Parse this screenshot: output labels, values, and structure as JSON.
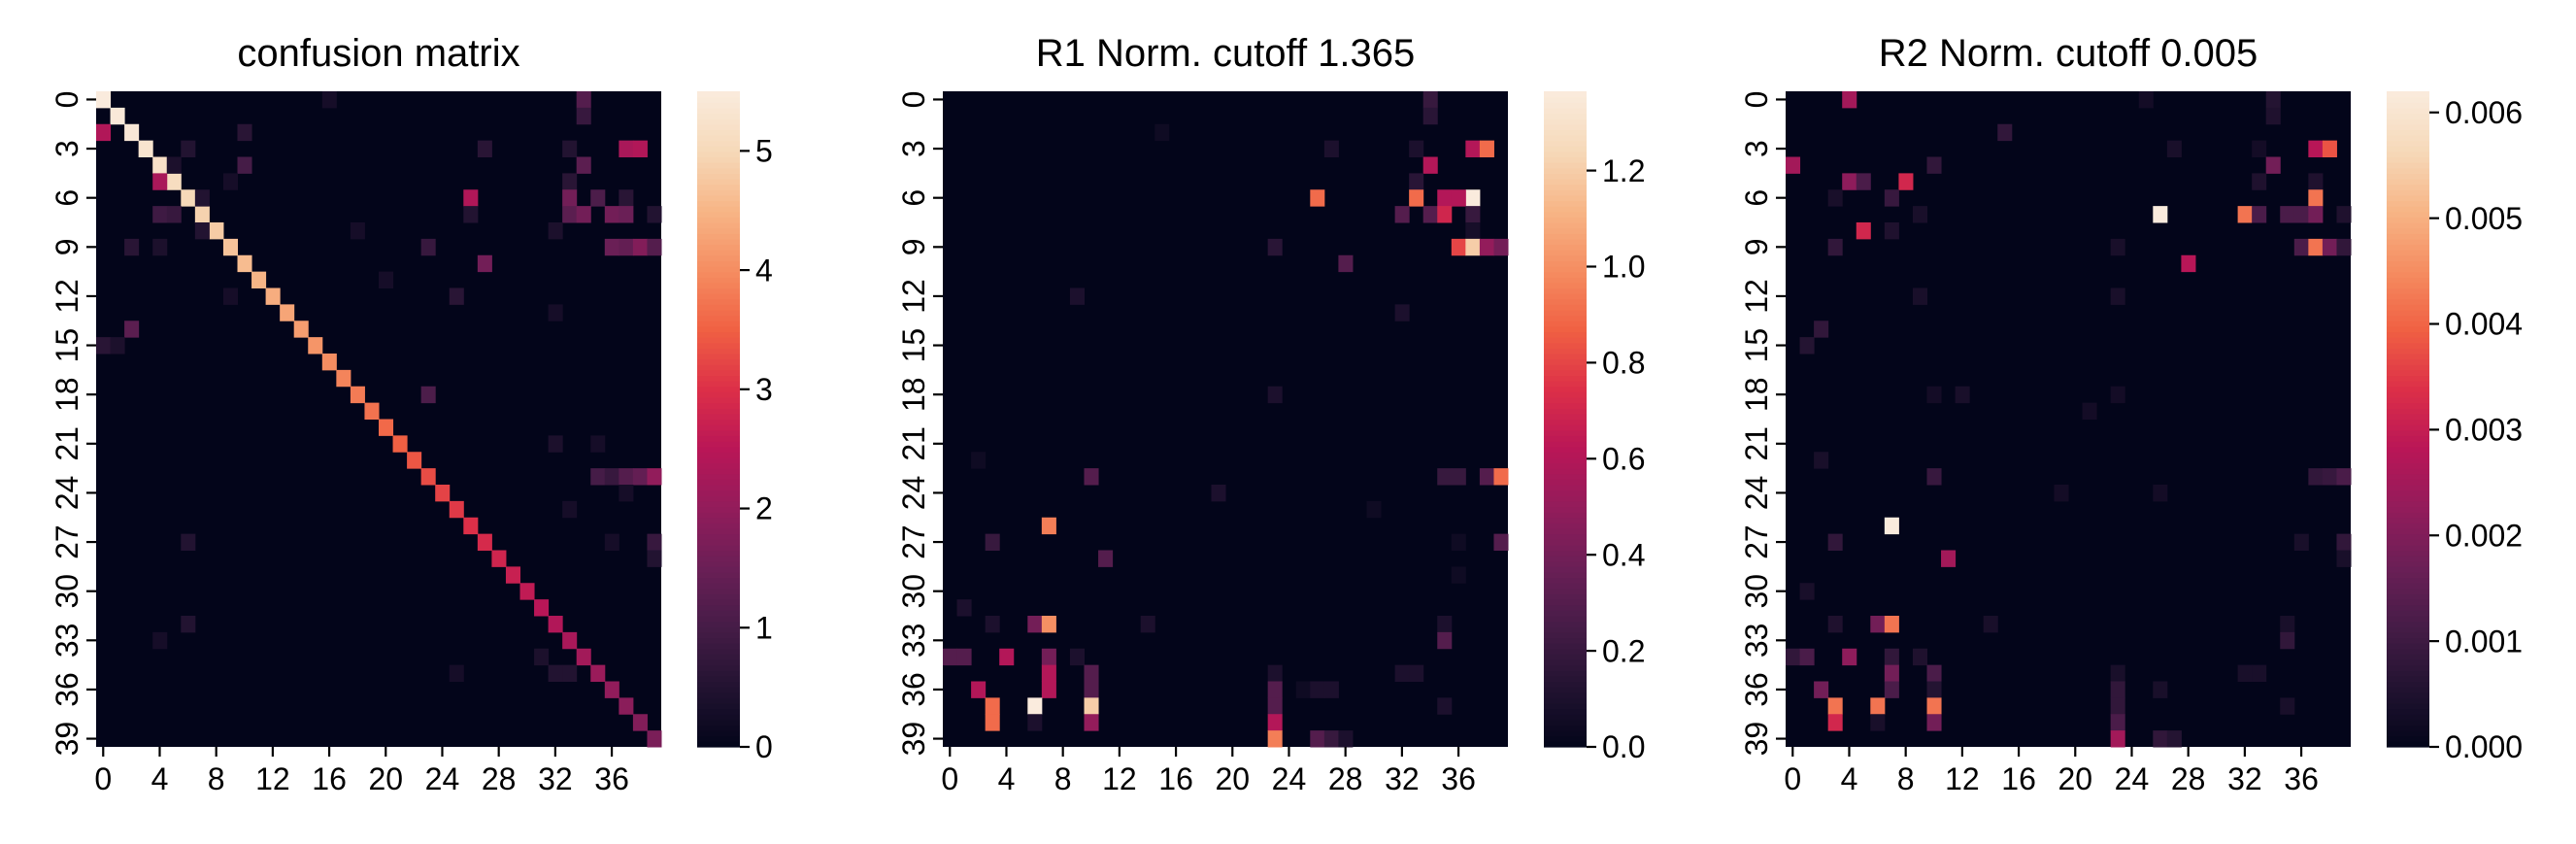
{
  "colormap": [
    "#03051a",
    "#221331",
    "#451c47",
    "#6a1f56",
    "#921c5b",
    "#b91657",
    "#dc2f48",
    "#f06043",
    "#f58d61",
    "#f7b586",
    "#f6d9b9",
    "#faebdd"
  ],
  "chart_data": [
    {
      "type": "heatmap",
      "title": "confusion matrix",
      "rows": 40,
      "cols": 40,
      "yticks": [
        0,
        3,
        6,
        9,
        12,
        15,
        18,
        21,
        24,
        27,
        30,
        33,
        36,
        39
      ],
      "xticks": [
        0,
        4,
        8,
        12,
        16,
        20,
        24,
        28,
        32,
        36
      ],
      "vmin": 0,
      "vmax": 5.5,
      "colorbar_ticks": [
        0,
        1,
        2,
        3,
        4,
        5
      ],
      "colorbar_tick_labels": [
        "0",
        "1",
        "2",
        "3",
        "4",
        "5"
      ],
      "diagonal": [
        5.5,
        5.45,
        5.4,
        5.3,
        5.2,
        5.1,
        5.0,
        4.9,
        4.8,
        4.7,
        4.6,
        4.5,
        4.4,
        4.3,
        4.2,
        4.1,
        4.0,
        3.9,
        3.8,
        3.7,
        3.6,
        3.5,
        3.4,
        3.3,
        3.2,
        3.1,
        3.0,
        2.9,
        2.8,
        2.7,
        2.6,
        2.5,
        2.4,
        2.3,
        2.2,
        2.1,
        2.0,
        1.9,
        1.8,
        1.7
      ],
      "cells": [
        [
          0,
          16,
          0.3
        ],
        [
          0,
          34,
          1.2
        ],
        [
          1,
          34,
          0.8
        ],
        [
          2,
          0,
          2.4
        ],
        [
          2,
          10,
          0.6
        ],
        [
          3,
          6,
          0.5
        ],
        [
          3,
          27,
          0.6
        ],
        [
          3,
          33,
          0.5
        ],
        [
          3,
          37,
          2.3
        ],
        [
          3,
          38,
          2.4
        ],
        [
          4,
          5,
          0.4
        ],
        [
          4,
          10,
          1.0
        ],
        [
          4,
          34,
          1.3
        ],
        [
          5,
          4,
          2.3
        ],
        [
          5,
          9,
          0.3
        ],
        [
          5,
          33,
          0.6
        ],
        [
          6,
          7,
          0.5
        ],
        [
          6,
          26,
          2.4
        ],
        [
          6,
          33,
          1.6
        ],
        [
          6,
          35,
          1.1
        ],
        [
          6,
          37,
          0.6
        ],
        [
          7,
          4,
          0.9
        ],
        [
          7,
          5,
          0.8
        ],
        [
          7,
          26,
          0.5
        ],
        [
          7,
          33,
          1.3
        ],
        [
          7,
          34,
          1.6
        ],
        [
          7,
          36,
          1.6
        ],
        [
          7,
          37,
          1.5
        ],
        [
          7,
          39,
          0.5
        ],
        [
          8,
          7,
          0.5
        ],
        [
          8,
          18,
          0.3
        ],
        [
          8,
          32,
          0.4
        ],
        [
          9,
          2,
          0.6
        ],
        [
          9,
          4,
          0.4
        ],
        [
          9,
          23,
          0.8
        ],
        [
          9,
          36,
          1.5
        ],
        [
          9,
          37,
          1.4
        ],
        [
          9,
          38,
          1.8
        ],
        [
          9,
          39,
          1.2
        ],
        [
          10,
          27,
          1.6
        ],
        [
          11,
          20,
          0.3
        ],
        [
          12,
          9,
          0.3
        ],
        [
          12,
          25,
          0.6
        ],
        [
          13,
          32,
          0.3
        ],
        [
          14,
          2,
          1.3
        ],
        [
          15,
          0,
          0.6
        ],
        [
          15,
          1,
          0.4
        ],
        [
          18,
          23,
          1.1
        ],
        [
          21,
          32,
          0.4
        ],
        [
          21,
          35,
          0.3
        ],
        [
          23,
          35,
          1.0
        ],
        [
          23,
          36,
          0.8
        ],
        [
          23,
          37,
          1.2
        ],
        [
          23,
          38,
          1.4
        ],
        [
          23,
          39,
          2.0
        ],
        [
          24,
          37,
          0.3
        ],
        [
          25,
          33,
          0.3
        ],
        [
          27,
          6,
          0.5
        ],
        [
          27,
          36,
          0.3
        ],
        [
          27,
          39,
          0.8
        ],
        [
          28,
          39,
          0.5
        ],
        [
          32,
          6,
          0.5
        ],
        [
          33,
          4,
          0.3
        ],
        [
          34,
          31,
          0.4
        ],
        [
          35,
          25,
          0.3
        ],
        [
          35,
          32,
          0.5
        ],
        [
          35,
          33,
          0.5
        ]
      ]
    },
    {
      "type": "heatmap",
      "title": "R1 Norm. cutoff 1.365",
      "rows": 40,
      "cols": 40,
      "yticks": [
        0,
        3,
        6,
        9,
        12,
        15,
        18,
        21,
        24,
        27,
        30,
        33,
        36,
        39
      ],
      "xticks": [
        0,
        4,
        8,
        12,
        16,
        20,
        24,
        28,
        32,
        36
      ],
      "vmin": 0,
      "vmax": 1.365,
      "colorbar_ticks": [
        0,
        0.2,
        0.4,
        0.6,
        0.8,
        1.0,
        1.2
      ],
      "colorbar_tick_labels": [
        "0.0",
        "0.2",
        "0.4",
        "0.6",
        "0.8",
        "1.0",
        "1.2"
      ],
      "cells": [
        [
          0,
          34,
          0.2
        ],
        [
          1,
          34,
          0.15
        ],
        [
          2,
          15,
          0.05
        ],
        [
          3,
          27,
          0.1
        ],
        [
          3,
          33,
          0.1
        ],
        [
          3,
          37,
          0.6
        ],
        [
          3,
          38,
          0.9
        ],
        [
          4,
          34,
          0.6
        ],
        [
          5,
          33,
          0.15
        ],
        [
          6,
          26,
          0.9
        ],
        [
          6,
          33,
          0.9
        ],
        [
          6,
          35,
          0.6
        ],
        [
          6,
          37,
          1.365
        ],
        [
          6,
          36,
          0.6
        ],
        [
          7,
          32,
          0.3
        ],
        [
          7,
          34,
          0.3
        ],
        [
          7,
          35,
          0.7
        ],
        [
          7,
          37,
          0.2
        ],
        [
          8,
          37,
          0.08
        ],
        [
          9,
          23,
          0.15
        ],
        [
          9,
          36,
          0.8
        ],
        [
          9,
          37,
          1.2
        ],
        [
          9,
          38,
          0.5
        ],
        [
          9,
          39,
          0.4
        ],
        [
          10,
          28,
          0.3
        ],
        [
          12,
          9,
          0.1
        ],
        [
          13,
          32,
          0.1
        ],
        [
          18,
          23,
          0.1
        ],
        [
          22,
          2,
          0.05
        ],
        [
          23,
          10,
          0.3
        ],
        [
          23,
          35,
          0.2
        ],
        [
          23,
          36,
          0.2
        ],
        [
          23,
          38,
          0.3
        ],
        [
          23,
          39,
          0.9
        ],
        [
          24,
          19,
          0.1
        ],
        [
          25,
          30,
          0.05
        ],
        [
          26,
          7,
          0.95
        ],
        [
          27,
          3,
          0.2
        ],
        [
          27,
          36,
          0.05
        ],
        [
          27,
          39,
          0.3
        ],
        [
          28,
          11,
          0.3
        ],
        [
          29,
          36,
          0.05
        ],
        [
          31,
          1,
          0.1
        ],
        [
          32,
          3,
          0.1
        ],
        [
          32,
          6,
          0.4
        ],
        [
          32,
          7,
          1.0
        ],
        [
          32,
          14,
          0.1
        ],
        [
          32,
          35,
          0.1
        ],
        [
          33,
          35,
          0.3
        ],
        [
          34,
          0,
          0.3
        ],
        [
          34,
          1,
          0.3
        ],
        [
          34,
          4,
          0.6
        ],
        [
          34,
          7,
          0.4
        ],
        [
          34,
          9,
          0.1
        ],
        [
          35,
          7,
          0.6
        ],
        [
          35,
          10,
          0.3
        ],
        [
          35,
          23,
          0.1
        ],
        [
          35,
          32,
          0.1
        ],
        [
          35,
          33,
          0.1
        ],
        [
          36,
          2,
          0.6
        ],
        [
          36,
          7,
          0.6
        ],
        [
          36,
          10,
          0.3
        ],
        [
          36,
          23,
          0.3
        ],
        [
          36,
          25,
          0.05
        ],
        [
          36,
          26,
          0.1
        ],
        [
          36,
          27,
          0.1
        ],
        [
          37,
          3,
          0.9
        ],
        [
          37,
          6,
          1.365
        ],
        [
          37,
          10,
          1.2
        ],
        [
          37,
          23,
          0.3
        ],
        [
          37,
          35,
          0.1
        ],
        [
          38,
          3,
          0.9
        ],
        [
          38,
          6,
          0.1
        ],
        [
          38,
          10,
          0.5
        ],
        [
          38,
          23,
          0.6
        ],
        [
          39,
          23,
          0.95
        ],
        [
          39,
          26,
          0.3
        ],
        [
          39,
          27,
          0.2
        ],
        [
          39,
          28,
          0.1
        ]
      ]
    },
    {
      "type": "heatmap",
      "title": "R2 Norm. cutoff 0.005",
      "rows": 40,
      "cols": 40,
      "yticks": [
        0,
        3,
        6,
        9,
        12,
        15,
        18,
        21,
        24,
        27,
        30,
        33,
        36,
        39
      ],
      "xticks": [
        0,
        4,
        8,
        12,
        16,
        20,
        24,
        28,
        32,
        36
      ],
      "vmin": 0,
      "vmax": 0.0062,
      "colorbar_ticks": [
        0,
        0.001,
        0.002,
        0.003,
        0.004,
        0.005,
        0.006
      ],
      "colorbar_tick_labels": [
        "0.000",
        "0.001",
        "0.002",
        "0.003",
        "0.004",
        "0.005",
        "0.006"
      ],
      "cells": [
        [
          0,
          4,
          0.0025
        ],
        [
          0,
          25,
          0.0003
        ],
        [
          0,
          34,
          0.0006
        ],
        [
          1,
          34,
          0.0005
        ],
        [
          2,
          15,
          0.0008
        ],
        [
          3,
          27,
          0.0004
        ],
        [
          3,
          33,
          0.0003
        ],
        [
          3,
          37,
          0.0028
        ],
        [
          3,
          38,
          0.0038
        ],
        [
          4,
          0,
          0.0025
        ],
        [
          4,
          10,
          0.0008
        ],
        [
          4,
          34,
          0.0018
        ],
        [
          5,
          4,
          0.0022
        ],
        [
          5,
          5,
          0.0012
        ],
        [
          5,
          8,
          0.0032
        ],
        [
          5,
          33,
          0.0005
        ],
        [
          5,
          37,
          0.0005
        ],
        [
          6,
          3,
          0.0004
        ],
        [
          6,
          7,
          0.0009
        ],
        [
          6,
          37,
          0.0042
        ],
        [
          7,
          9,
          0.0004
        ],
        [
          7,
          26,
          0.0062
        ],
        [
          7,
          32,
          0.0042
        ],
        [
          7,
          33,
          0.0012
        ],
        [
          7,
          35,
          0.0012
        ],
        [
          7,
          36,
          0.0012
        ],
        [
          7,
          37,
          0.0018
        ],
        [
          7,
          39,
          0.0005
        ],
        [
          8,
          5,
          0.0032
        ],
        [
          8,
          7,
          0.0005
        ],
        [
          9,
          3,
          0.0008
        ],
        [
          9,
          23,
          0.0004
        ],
        [
          9,
          36,
          0.0012
        ],
        [
          9,
          37,
          0.0042
        ],
        [
          9,
          38,
          0.0018
        ],
        [
          9,
          39,
          0.0008
        ],
        [
          10,
          28,
          0.0028
        ],
        [
          12,
          9,
          0.0004
        ],
        [
          12,
          23,
          0.0004
        ],
        [
          14,
          2,
          0.0008
        ],
        [
          15,
          1,
          0.0006
        ],
        [
          18,
          23,
          0.0003
        ],
        [
          18,
          10,
          0.0003
        ],
        [
          18,
          12,
          0.0004
        ],
        [
          19,
          21,
          0.0003
        ],
        [
          22,
          2,
          0.0004
        ],
        [
          23,
          10,
          0.0009
        ],
        [
          23,
          37,
          0.0008
        ],
        [
          23,
          38,
          0.0009
        ],
        [
          23,
          39,
          0.0012
        ],
        [
          24,
          19,
          0.0003
        ],
        [
          24,
          26,
          0.0003
        ],
        [
          26,
          7,
          0.0062
        ],
        [
          27,
          3,
          0.0008
        ],
        [
          27,
          36,
          0.0004
        ],
        [
          27,
          39,
          0.0008
        ],
        [
          28,
          39,
          0.0004
        ],
        [
          28,
          11,
          0.0025
        ],
        [
          30,
          1,
          0.0004
        ],
        [
          32,
          3,
          0.0005
        ],
        [
          32,
          6,
          0.0018
        ],
        [
          32,
          7,
          0.0042
        ],
        [
          32,
          14,
          0.0004
        ],
        [
          32,
          35,
          0.0004
        ],
        [
          33,
          35,
          0.0008
        ],
        [
          34,
          0,
          0.0008
        ],
        [
          34,
          1,
          0.0012
        ],
        [
          34,
          4,
          0.0022
        ],
        [
          34,
          7,
          0.0008
        ],
        [
          34,
          9,
          0.0005
        ],
        [
          35,
          7,
          0.0018
        ],
        [
          35,
          10,
          0.0012
        ],
        [
          35,
          23,
          0.0004
        ],
        [
          35,
          32,
          0.0004
        ],
        [
          35,
          33,
          0.0004
        ],
        [
          36,
          2,
          0.0018
        ],
        [
          36,
          7,
          0.0012
        ],
        [
          36,
          10,
          0.0006
        ],
        [
          36,
          23,
          0.0008
        ],
        [
          36,
          26,
          0.0004
        ],
        [
          37,
          3,
          0.0042
        ],
        [
          37,
          6,
          0.0042
        ],
        [
          37,
          10,
          0.0042
        ],
        [
          37,
          23,
          0.0008
        ],
        [
          37,
          35,
          0.0004
        ],
        [
          38,
          3,
          0.0032
        ],
        [
          38,
          6,
          0.0004
        ],
        [
          38,
          10,
          0.0018
        ],
        [
          38,
          23,
          0.0012
        ],
        [
          39,
          23,
          0.0025
        ],
        [
          39,
          26,
          0.0008
        ],
        [
          39,
          27,
          0.0006
        ]
      ]
    }
  ]
}
